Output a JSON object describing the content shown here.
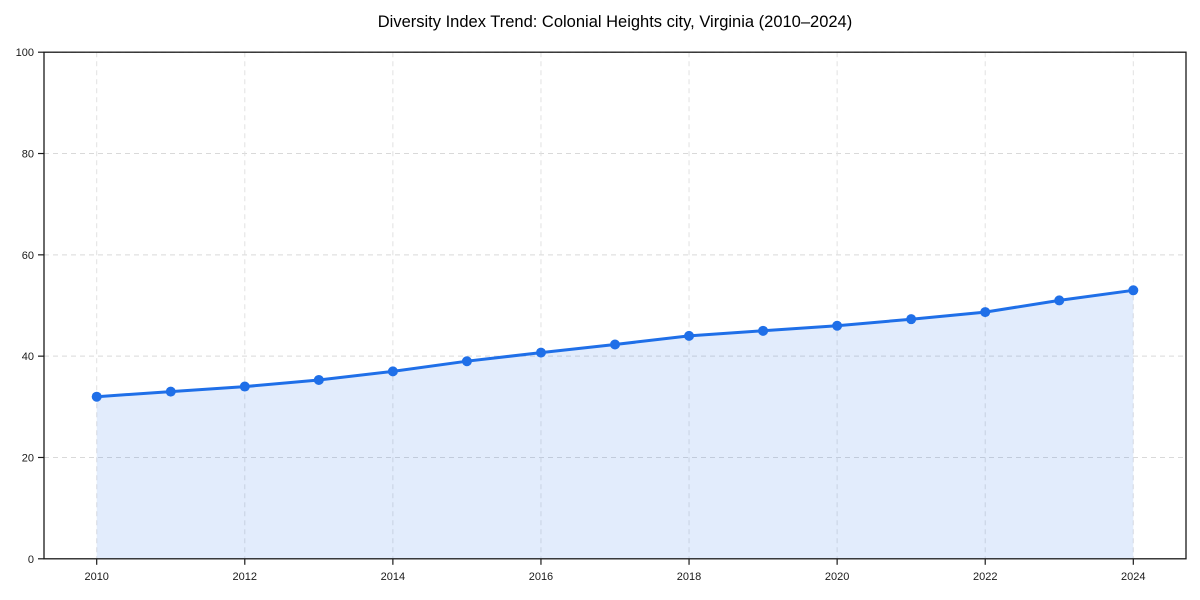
{
  "title": "Diversity Index Trend: Colonial Heights city, Virginia (2010–2024)",
  "colors": {
    "line": "#1f6fe8",
    "marker": "#1f6fe8",
    "area_fill": "rgba(31,111,232,0.13)",
    "grid": "#d9d9d9",
    "spine": "#1a1a1a",
    "tick_text": "#1a1a1a",
    "title_text": "#000000",
    "background": "#ffffff"
  },
  "chart_data": {
    "type": "line",
    "title": "Diversity Index Trend: Colonial Heights city, Virginia (2010–2024)",
    "xlabel": "",
    "ylabel": "",
    "x": [
      2010,
      2011,
      2012,
      2013,
      2014,
      2015,
      2016,
      2017,
      2018,
      2019,
      2020,
      2021,
      2022,
      2023,
      2024
    ],
    "values": [
      32,
      33,
      34,
      35.3,
      37,
      39,
      40.7,
      42.3,
      44,
      45,
      46,
      47.3,
      48.7,
      51,
      53
    ],
    "series_name": "Diversity Index",
    "xlim": [
      2010,
      2024
    ],
    "ylim": [
      0,
      100
    ],
    "xticks": [
      2010,
      2012,
      2014,
      2016,
      2018,
      2020,
      2022,
      2024
    ],
    "yticks": [
      0,
      20,
      40,
      60,
      80,
      100
    ],
    "grid": "dashed-both-axes",
    "legend": "none",
    "area_fill": true,
    "markers": true
  }
}
